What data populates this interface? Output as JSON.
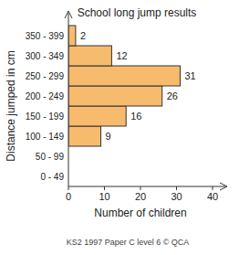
{
  "chart_data": {
    "type": "bar",
    "orientation": "horizontal",
    "title": "School long jump results",
    "x_label": "Number of children",
    "y_label": "Distance jumped in cm",
    "annotations": [
      "KS2 1997 Paper C level 6 © QCA"
    ],
    "categories": [
      "0 - 49",
      "50 - 99",
      "100 - 149",
      "150 - 199",
      "200 - 249",
      "250 - 299",
      "300 - 349",
      "350 - 399"
    ],
    "values": [
      0,
      0,
      9,
      16,
      26,
      31,
      12,
      2
    ],
    "value_labels": [
      null,
      null,
      "9",
      "16",
      "26",
      "31",
      "12",
      "2"
    ],
    "data_labels": true,
    "color": "#f7bb6e",
    "xlim": [
      0,
      40
    ],
    "xticks": [
      0,
      10,
      20,
      30,
      40
    ],
    "grid": false
  }
}
